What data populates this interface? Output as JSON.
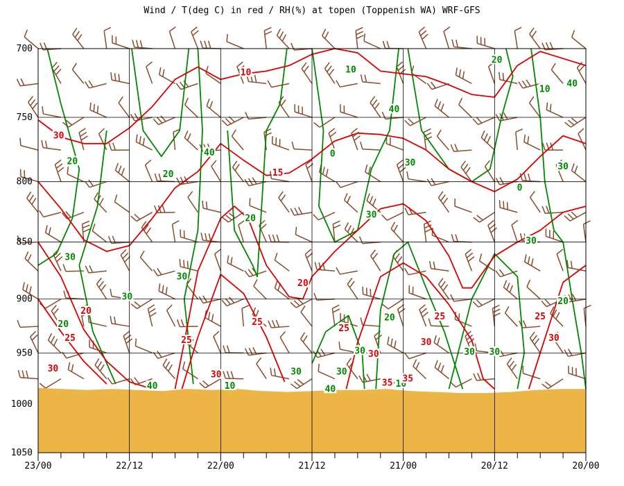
{
  "title": "Wind / T(deg C) in red / RH(%) at topen (Toppenish WA)  WRF-GFS",
  "colors": {
    "temperature": "#dd0000",
    "rh": "#008800",
    "wind": "#8b4a2b",
    "terrain": "#edb545",
    "grid": "#000000"
  },
  "chart_data": {
    "type": "cross-section",
    "title": "Wind / T(deg C) in red / RH(%) at topen (Toppenish WA)  WRF-GFS",
    "xlabel": "",
    "ylabel": "",
    "x_ticks": [
      "23/00",
      "22/12",
      "22/00",
      "21/12",
      "21/00",
      "20/12",
      "20/00"
    ],
    "y_ticks": [
      "700",
      "750",
      "800",
      "850",
      "900",
      "950",
      "1000",
      "1050"
    ],
    "y_range_hpa": [
      700,
      1050
    ],
    "y_scale": "log-pressure",
    "grid": true,
    "surface_pressure_hpa": [
      984,
      985,
      986,
      985,
      986,
      987,
      985,
      986,
      985,
      987,
      988,
      987,
      986,
      986,
      985,
      987,
      988,
      989,
      989,
      988,
      986,
      985,
      985
    ],
    "temperature_labels": [
      {
        "text": "10",
        "time_index": 9.1,
        "p": 717
      },
      {
        "text": "15",
        "time_index": 10.5,
        "p": 793
      },
      {
        "text": "20",
        "time_index": 11.6,
        "p": 886
      },
      {
        "text": "20",
        "time_index": 2.1,
        "p": 911
      },
      {
        "text": "25",
        "time_index": 1.4,
        "p": 936
      },
      {
        "text": "25",
        "time_index": 6.5,
        "p": 938
      },
      {
        "text": "25",
        "time_index": 9.6,
        "p": 921
      },
      {
        "text": "25",
        "time_index": 13.4,
        "p": 927
      },
      {
        "text": "25",
        "time_index": 17.6,
        "p": 916
      },
      {
        "text": "25",
        "time_index": 22.0,
        "p": 916
      },
      {
        "text": "30",
        "time_index": 0.65,
        "p": 965
      },
      {
        "text": "30",
        "time_index": 7.8,
        "p": 971
      },
      {
        "text": "30",
        "time_index": 14.7,
        "p": 951
      },
      {
        "text": "30",
        "time_index": 17.0,
        "p": 940
      },
      {
        "text": "30",
        "time_index": 22.6,
        "p": 936
      },
      {
        "text": "30",
        "time_index": 0.9,
        "p": 764
      },
      {
        "text": "35",
        "time_index": 15.3,
        "p": 979
      },
      {
        "text": "35",
        "time_index": 16.2,
        "p": 975
      }
    ],
    "rh_labels": [
      {
        "text": "10",
        "time_index": 13.7,
        "p": 715
      },
      {
        "text": "10",
        "time_index": 22.2,
        "p": 729
      },
      {
        "text": "20",
        "time_index": 20.1,
        "p": 708
      },
      {
        "text": "40",
        "time_index": 23.4,
        "p": 725
      },
      {
        "text": "40",
        "time_index": 15.6,
        "p": 744
      },
      {
        "text": "30",
        "time_index": 16.3,
        "p": 785
      },
      {
        "text": "30",
        "time_index": 23.0,
        "p": 788
      },
      {
        "text": "20",
        "time_index": 1.5,
        "p": 784
      },
      {
        "text": "20",
        "time_index": 5.7,
        "p": 794
      },
      {
        "text": "40",
        "time_index": 7.5,
        "p": 777
      },
      {
        "text": "20",
        "time_index": 9.3,
        "p": 830
      },
      {
        "text": "0",
        "time_index": 12.9,
        "p": 778
      },
      {
        "text": "30",
        "time_index": 14.6,
        "p": 827
      },
      {
        "text": "0",
        "time_index": 21.1,
        "p": 805
      },
      {
        "text": "30",
        "time_index": 21.6,
        "p": 849
      },
      {
        "text": "30",
        "time_index": 1.4,
        "p": 863
      },
      {
        "text": "30",
        "time_index": 6.3,
        "p": 880
      },
      {
        "text": "30",
        "time_index": 3.9,
        "p": 898
      },
      {
        "text": "20",
        "time_index": 1.1,
        "p": 923
      },
      {
        "text": "20",
        "time_index": 15.4,
        "p": 917
      },
      {
        "text": "20",
        "time_index": 23.0,
        "p": 902
      },
      {
        "text": "30",
        "time_index": 14.1,
        "p": 948
      },
      {
        "text": "30",
        "time_index": 11.3,
        "p": 968
      },
      {
        "text": "30",
        "time_index": 13.3,
        "p": 968
      },
      {
        "text": "30",
        "time_index": 18.9,
        "p": 949
      },
      {
        "text": "30",
        "time_index": 20.0,
        "p": 949
      },
      {
        "text": "40",
        "time_index": 5.0,
        "p": 982
      },
      {
        "text": "40",
        "time_index": 12.8,
        "p": 985
      },
      {
        "text": "10",
        "time_index": 8.4,
        "p": 982
      },
      {
        "text": "10",
        "time_index": 15.9,
        "p": 980
      }
    ]
  }
}
